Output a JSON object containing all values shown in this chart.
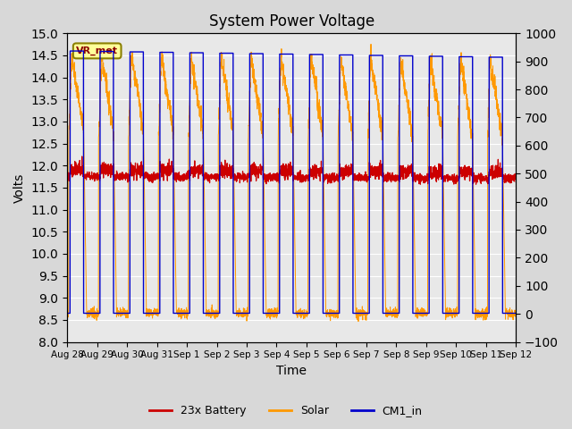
{
  "title": "System Power Voltage",
  "xlabel": "Time",
  "ylabel_left": "Volts",
  "ylim_left": [
    8.0,
    15.0
  ],
  "ylim_right": [
    -100,
    1000
  ],
  "yticks_left": [
    8.0,
    8.5,
    9.0,
    9.5,
    10.0,
    10.5,
    11.0,
    11.5,
    12.0,
    12.5,
    13.0,
    13.5,
    14.0,
    14.5,
    15.0
  ],
  "yticks_right": [
    -100,
    0,
    100,
    200,
    300,
    400,
    500,
    600,
    700,
    800,
    900,
    1000
  ],
  "xtick_labels": [
    "Aug 28",
    "Aug 29",
    "Aug 30",
    "Aug 31",
    "Sep 1",
    "Sep 2",
    "Sep 3",
    "Sep 4",
    "Sep 5",
    "Sep 6",
    "Sep 7",
    "Sep 8",
    "Sep 9",
    "Sep 10",
    "Sep 11",
    "Sep 12"
  ],
  "bg_color": "#d8d8d8",
  "plot_bg_color": "#e8e8e8",
  "grid_color": "#ffffff",
  "annotation_text": "VR_met",
  "annotation_box_color": "#ffff99",
  "annotation_border_color": "#8B8000",
  "line_colors": {
    "battery": "#cc0000",
    "solar": "#ff9900",
    "cm1": "#0000cc"
  },
  "legend_labels": [
    "23x Battery",
    "Solar",
    "CM1_in"
  ],
  "n_days": 15,
  "battery_base": 11.9,
  "solar_night_base": 12.6,
  "solar_peak": 14.5,
  "cm1_high": 14.6,
  "cm1_low": 8.65
}
